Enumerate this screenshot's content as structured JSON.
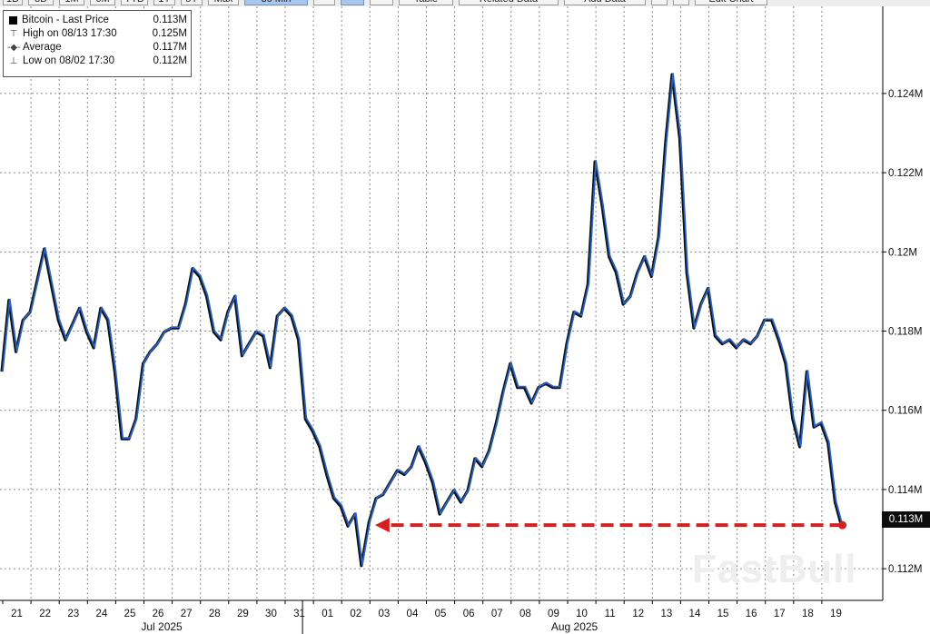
{
  "toolbar": {
    "buttons": [
      {
        "label": "1D",
        "active": false
      },
      {
        "label": "3D",
        "active": false
      },
      {
        "label": "1M",
        "active": false
      },
      {
        "label": "6M",
        "active": false
      },
      {
        "label": "YTD",
        "active": false
      },
      {
        "label": "1Y",
        "active": false
      },
      {
        "label": "5Y",
        "active": false
      },
      {
        "label": "Max",
        "active": false
      },
      {
        "label": "30 Min",
        "active": true
      },
      {
        "label": "",
        "active": false
      },
      {
        "label": "",
        "active": true
      },
      {
        "label": "",
        "active": false
      },
      {
        "label": "Table",
        "active": false
      },
      {
        "label": "Related Data",
        "active": false
      },
      {
        "label": "Add Data",
        "active": false
      },
      {
        "label": "",
        "active": false
      },
      {
        "label": "",
        "active": false
      },
      {
        "label": "Edit Chart",
        "active": false
      }
    ]
  },
  "legend": {
    "series_label": "Bitcoin - Last Price",
    "series_value": "0.113M",
    "high_label": "High on 08/13 17:30",
    "high_value": "0.125M",
    "average_label": "Average",
    "average_value": "0.117M",
    "low_label": "Low on 08/02 17:30",
    "low_value": "0.112M"
  },
  "last_price_tag": "0.113M",
  "watermark": "FastBull",
  "colors": {
    "line": "#2a62c4",
    "shadow": "#111111",
    "arrow": "#d42020",
    "grid": "#8a8a8a",
    "tag_bg": "#0d0d0d"
  },
  "chart_data": {
    "type": "line",
    "x_axis_ticks": [
      "21",
      "22",
      "23",
      "24",
      "25",
      "26",
      "27",
      "28",
      "29",
      "30",
      "31",
      "01",
      "02",
      "03",
      "04",
      "05",
      "06",
      "07",
      "08",
      "09",
      "10",
      "11",
      "12",
      "13",
      "14",
      "15",
      "16",
      "17",
      "18",
      "19"
    ],
    "x_axis_months": [
      {
        "label": "Jul 2025"
      },
      {
        "label": "Aug 2025"
      }
    ],
    "y_axis_ticks": [
      {
        "value": 0.112,
        "label": "0.112M"
      },
      {
        "value": 0.114,
        "label": "0.114M"
      },
      {
        "value": 0.116,
        "label": "0.116M"
      },
      {
        "value": 0.118,
        "label": "0.118M"
      },
      {
        "value": 0.12,
        "label": "0.12M"
      },
      {
        "value": 0.122,
        "label": "0.122M"
      },
      {
        "value": 0.124,
        "label": "0.124M"
      }
    ],
    "ylim": [
      0.1112,
      0.1262
    ],
    "series": [
      {
        "name": "Bitcoin - Last Price",
        "points": [
          [
            "07/21 00:00",
            0.117
          ],
          [
            "07/21 06:00",
            0.1188
          ],
          [
            "07/21 12:00",
            0.1175
          ],
          [
            "07/21 18:00",
            0.1183
          ],
          [
            "07/22 00:00",
            0.1185
          ],
          [
            "07/22 06:00",
            0.1193
          ],
          [
            "07/22 12:00",
            0.1201
          ],
          [
            "07/22 18:00",
            0.1192
          ],
          [
            "07/23 00:00",
            0.1183
          ],
          [
            "07/23 06:00",
            0.1178
          ],
          [
            "07/23 12:00",
            0.1182
          ],
          [
            "07/23 18:00",
            0.1186
          ],
          [
            "07/24 00:00",
            0.118
          ],
          [
            "07/24 06:00",
            0.1176
          ],
          [
            "07/24 12:00",
            0.1186
          ],
          [
            "07/24 18:00",
            0.1183
          ],
          [
            "07/25 00:00",
            0.117
          ],
          [
            "07/25 06:00",
            0.1153
          ],
          [
            "07/25 12:00",
            0.1153
          ],
          [
            "07/25 18:00",
            0.1158
          ],
          [
            "07/26 00:00",
            0.1172
          ],
          [
            "07/26 06:00",
            0.1175
          ],
          [
            "07/26 12:00",
            0.1177
          ],
          [
            "07/26 18:00",
            0.118
          ],
          [
            "07/27 00:00",
            0.1181
          ],
          [
            "07/27 06:00",
            0.1181
          ],
          [
            "07/27 12:00",
            0.1187
          ],
          [
            "07/27 18:00",
            0.1196
          ],
          [
            "07/28 00:00",
            0.1194
          ],
          [
            "07/28 06:00",
            0.1189
          ],
          [
            "07/28 12:00",
            0.118
          ],
          [
            "07/28 18:00",
            0.1178
          ],
          [
            "07/29 00:00",
            0.1185
          ],
          [
            "07/29 06:00",
            0.1189
          ],
          [
            "07/29 12:00",
            0.1174
          ],
          [
            "07/29 18:00",
            0.1177
          ],
          [
            "07/30 00:00",
            0.118
          ],
          [
            "07/30 06:00",
            0.1179
          ],
          [
            "07/30 12:00",
            0.1171
          ],
          [
            "07/30 18:00",
            0.1184
          ],
          [
            "07/31 00:00",
            0.1186
          ],
          [
            "07/31 06:00",
            0.1184
          ],
          [
            "07/31 12:00",
            0.1178
          ],
          [
            "07/31 18:00",
            0.1158
          ],
          [
            "08/01 00:00",
            0.1155
          ],
          [
            "08/01 06:00",
            0.1151
          ],
          [
            "08/01 12:00",
            0.1144
          ],
          [
            "08/01 18:00",
            0.1138
          ],
          [
            "08/02 00:00",
            0.1136
          ],
          [
            "08/02 06:00",
            0.1131
          ],
          [
            "08/02 12:00",
            0.1134
          ],
          [
            "08/02 17:30",
            0.1121
          ],
          [
            "08/03 00:00",
            0.1132
          ],
          [
            "08/03 06:00",
            0.1138
          ],
          [
            "08/03 12:00",
            0.1139
          ],
          [
            "08/03 18:00",
            0.1142
          ],
          [
            "08/04 00:00",
            0.1145
          ],
          [
            "08/04 06:00",
            0.1144
          ],
          [
            "08/04 12:00",
            0.1146
          ],
          [
            "08/04 18:00",
            0.1151
          ],
          [
            "08/05 00:00",
            0.1147
          ],
          [
            "08/05 06:00",
            0.1142
          ],
          [
            "08/05 12:00",
            0.1134
          ],
          [
            "08/05 18:00",
            0.1137
          ],
          [
            "08/06 00:00",
            0.114
          ],
          [
            "08/06 06:00",
            0.1137
          ],
          [
            "08/06 12:00",
            0.114
          ],
          [
            "08/06 18:00",
            0.1148
          ],
          [
            "08/07 00:00",
            0.1146
          ],
          [
            "08/07 06:00",
            0.115
          ],
          [
            "08/07 12:00",
            0.1157
          ],
          [
            "08/07 18:00",
            0.1165
          ],
          [
            "08/08 00:00",
            0.1172
          ],
          [
            "08/08 06:00",
            0.1166
          ],
          [
            "08/08 12:00",
            0.1166
          ],
          [
            "08/08 18:00",
            0.1162
          ],
          [
            "08/09 00:00",
            0.1166
          ],
          [
            "08/09 06:00",
            0.1167
          ],
          [
            "08/09 12:00",
            0.1166
          ],
          [
            "08/09 18:00",
            0.1166
          ],
          [
            "08/10 00:00",
            0.1177
          ],
          [
            "08/10 06:00",
            0.1185
          ],
          [
            "08/10 12:00",
            0.1184
          ],
          [
            "08/10 18:00",
            0.1192
          ],
          [
            "08/11 00:00",
            0.1223
          ],
          [
            "08/11 06:00",
            0.1212
          ],
          [
            "08/11 12:00",
            0.1199
          ],
          [
            "08/11 18:00",
            0.1195
          ],
          [
            "08/12 00:00",
            0.1187
          ],
          [
            "08/12 06:00",
            0.1189
          ],
          [
            "08/12 12:00",
            0.1195
          ],
          [
            "08/12 18:00",
            0.1199
          ],
          [
            "08/13 00:00",
            0.1194
          ],
          [
            "08/13 06:00",
            0.1204
          ],
          [
            "08/13 12:00",
            0.1228
          ],
          [
            "08/13 17:30",
            0.1245
          ],
          [
            "08/14 00:00",
            0.1229
          ],
          [
            "08/14 06:00",
            0.1195
          ],
          [
            "08/14 12:00",
            0.1181
          ],
          [
            "08/14 18:00",
            0.1187
          ],
          [
            "08/15 00:00",
            0.1191
          ],
          [
            "08/15 06:00",
            0.1179
          ],
          [
            "08/15 12:00",
            0.1177
          ],
          [
            "08/15 18:00",
            0.1178
          ],
          [
            "08/16 00:00",
            0.1176
          ],
          [
            "08/16 06:00",
            0.1178
          ],
          [
            "08/16 12:00",
            0.1177
          ],
          [
            "08/16 18:00",
            0.1179
          ],
          [
            "08/17 00:00",
            0.1183
          ],
          [
            "08/17 06:00",
            0.1183
          ],
          [
            "08/17 12:00",
            0.1178
          ],
          [
            "08/17 18:00",
            0.1172
          ],
          [
            "08/18 00:00",
            0.1158
          ],
          [
            "08/18 06:00",
            0.1151
          ],
          [
            "08/18 12:00",
            0.117
          ],
          [
            "08/18 18:00",
            0.1156
          ],
          [
            "08/19 00:00",
            0.1157
          ],
          [
            "08/19 06:00",
            0.1152
          ],
          [
            "08/19 12:00",
            0.1137
          ],
          [
            "08/19 17:30",
            0.1131
          ]
        ]
      }
    ],
    "annotations": [
      {
        "type": "dashed-arrow",
        "from": [
          "08/19 17:30",
          0.1131
        ],
        "to": [
          "08/02 17:30",
          0.1131
        ]
      }
    ],
    "grid": true,
    "legend_position": "top-left"
  }
}
